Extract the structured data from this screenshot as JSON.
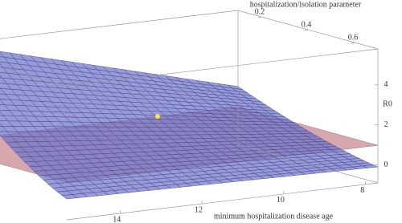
{
  "chart_data": {
    "type": "surface3d",
    "x_label": "minimum hospitalization disease age",
    "y_label": "hospitalization/isolation parameter",
    "z_label": "R0",
    "xlim": [
      7.7,
      15.3
    ],
    "ylim": [
      0.1,
      0.7
    ],
    "zlim": [
      -0.9,
      5.8
    ],
    "xticks": [
      8,
      10,
      12,
      14
    ],
    "yticks": [
      0.2,
      0.4,
      0.6
    ],
    "zticks": [
      0,
      2,
      4
    ]
  }
}
